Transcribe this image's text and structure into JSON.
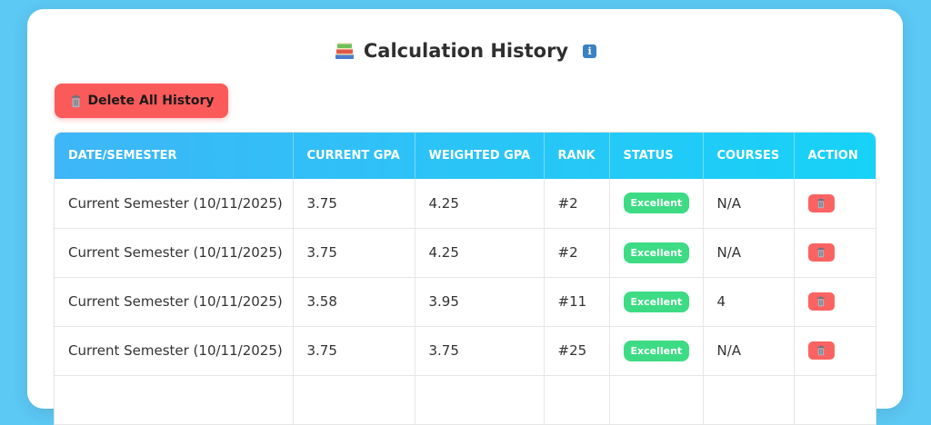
{
  "header": {
    "title": "Calculation History",
    "title_icon": "books-icon",
    "info_icon": "info-icon",
    "info_glyph": "i"
  },
  "toolbar": {
    "delete_all_label": "Delete All History",
    "delete_all_icon": "trash-icon"
  },
  "table": {
    "columns": [
      "DATE/SEMESTER",
      "CURRENT GPA",
      "WEIGHTED GPA",
      "RANK",
      "STATUS",
      "COURSES",
      "ACTION"
    ],
    "rows": [
      {
        "semester": "Current Semester (10/11/2025)",
        "current_gpa": "3.75",
        "weighted_gpa": "4.25",
        "rank": "#2",
        "status": "Excellent",
        "courses": "N/A"
      },
      {
        "semester": "Current Semester (10/11/2025)",
        "current_gpa": "3.75",
        "weighted_gpa": "4.25",
        "rank": "#2",
        "status": "Excellent",
        "courses": "N/A"
      },
      {
        "semester": "Current Semester (10/11/2025)",
        "current_gpa": "3.58",
        "weighted_gpa": "3.95",
        "rank": "#11",
        "status": "Excellent",
        "courses": "4"
      },
      {
        "semester": "Current Semester (10/11/2025)",
        "current_gpa": "3.75",
        "weighted_gpa": "3.75",
        "rank": "#25",
        "status": "Excellent",
        "courses": "N/A"
      },
      {
        "semester": "",
        "current_gpa": "",
        "weighted_gpa": "",
        "rank": "",
        "status": "",
        "courses": ""
      }
    ]
  },
  "colors": {
    "background": "#5cc8f4",
    "header_gradient_start": "#3eb6f7",
    "header_gradient_end": "#17d2f7",
    "delete_button": "#fb5a5a",
    "status_excellent": "#3ddc84"
  }
}
